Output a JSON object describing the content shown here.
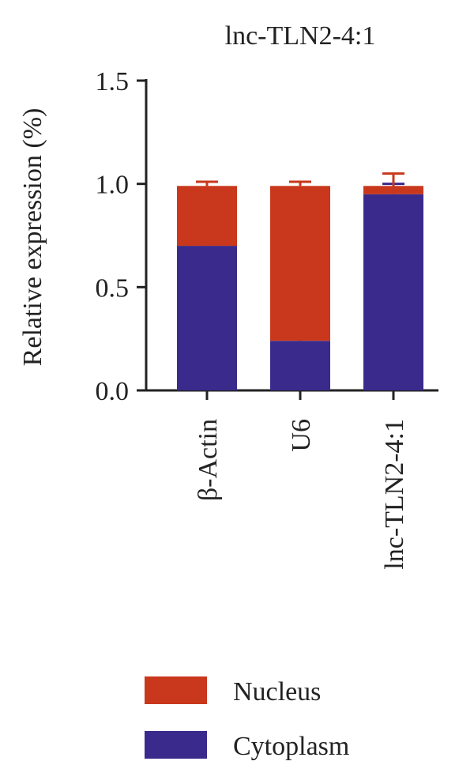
{
  "chart_data": {
    "type": "stacked-bar",
    "title": "lnc-TLN2-4:1",
    "y_label": "Relative expression (%)",
    "categories": [
      "β-Actin",
      "U6",
      "lnc-TLN2-4:1"
    ],
    "series": [
      {
        "name": "Cytoplasm",
        "color": "#3a2a8c",
        "values": [
          0.7,
          0.24,
          0.95
        ],
        "errors": [
          0.015,
          0.01,
          0.05
        ]
      },
      {
        "name": "Nucleus",
        "color": "#c9381c",
        "values": [
          0.29,
          0.75,
          0.04
        ],
        "errors": [
          0.02,
          0.02,
          0.06
        ]
      }
    ],
    "ylim": [
      0,
      1.5
    ],
    "yticks": [
      {
        "value": 0,
        "label": "0.0"
      },
      {
        "value": 0.5,
        "label": "0.5"
      },
      {
        "value": 1,
        "label": "1.0"
      },
      {
        "value": 1.5,
        "label": "1.5"
      }
    ]
  }
}
